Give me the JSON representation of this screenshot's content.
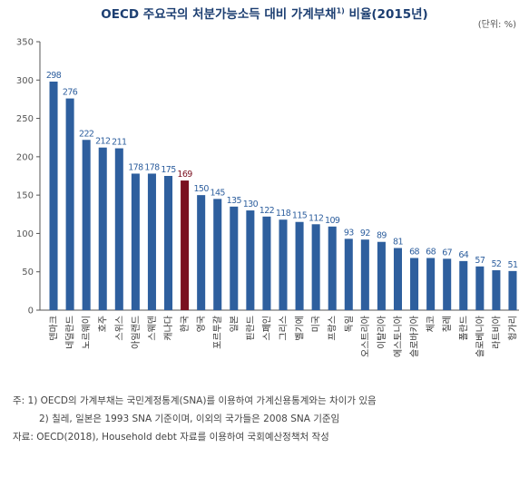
{
  "title": "OECD 주요국의 처분가능소득 대비 가계부채",
  "title_sup": "1)",
  "title_suffix": " 비율(2015년)",
  "unit": "(단위: %)",
  "colors": {
    "bar": "#2e5f9e",
    "highlight": "#7a1020",
    "axis": "#555555"
  },
  "chart_data": {
    "type": "bar",
    "title": "OECD 주요국의 처분가능소득 대비 가계부채 비율(2015년)",
    "categories": [
      "덴마크",
      "네덜란드",
      "노르웨이",
      "호주",
      "스위스",
      "아일랜드",
      "스웨덴",
      "캐나다",
      "한국",
      "영국",
      "포르투갈",
      "일본",
      "핀란드",
      "스페인",
      "그리스",
      "벨기에",
      "미국",
      "프랑스",
      "독일",
      "오스트리아",
      "이탈리아",
      "에스토니아",
      "슬로바키아",
      "체코",
      "칠레",
      "폴란드",
      "슬로베니아",
      "라트비아",
      "헝가리"
    ],
    "values": [
      298,
      276,
      222,
      212,
      211,
      178,
      178,
      175,
      169,
      150,
      145,
      135,
      130,
      122,
      118,
      115,
      112,
      109,
      93,
      92,
      89,
      81,
      68,
      68,
      67,
      64,
      57,
      52,
      51
    ],
    "highlight_index": 8,
    "ylim": [
      0,
      350
    ],
    "yticks": [
      0,
      50,
      100,
      150,
      200,
      250,
      300,
      350
    ],
    "xlabel": "",
    "ylabel": ""
  },
  "notes": {
    "note1": "주: 1) OECD의 가계부채는 국민계정통계(SNA)를 이용하여 가계신용통계와는 차이가 있음",
    "note2": "2) 칠레, 일본은 1993 SNA 기준이며, 이외의 국가들은 2008 SNA 기준임",
    "source": "자료: OECD(2018), Household debt 자료를 이용하여 국회예산정책처 작성"
  }
}
